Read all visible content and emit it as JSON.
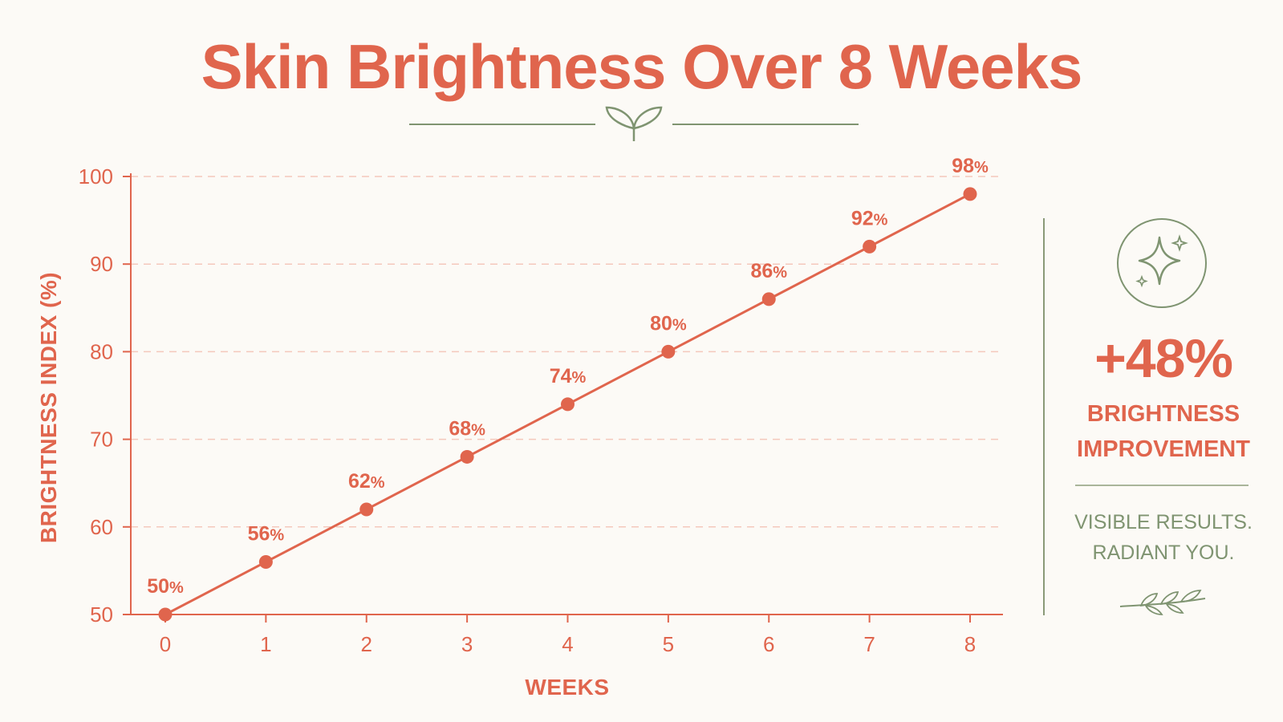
{
  "title": "Skin Brightness Over 8 Weeks",
  "colors": {
    "accent": "#e0654d",
    "sage": "#7f9471",
    "background": "#fcfaf6",
    "grid": "#f4c8bc"
  },
  "icons": {
    "title_ornament": "leaf-sprout-icon",
    "badge": "sparkle-icon",
    "footer": "branch-leaves-icon"
  },
  "chart_data": {
    "type": "line",
    "title": "Skin Brightness Over 8 Weeks",
    "xlabel": "WEEKS",
    "ylabel": "BRIGHTNESS INDEX (%)",
    "x": [
      0,
      1,
      2,
      3,
      4,
      5,
      6,
      7,
      8
    ],
    "values": [
      50,
      56,
      62,
      68,
      74,
      80,
      86,
      92,
      98
    ],
    "data_label_unit": "%",
    "xlim": [
      0,
      8
    ],
    "ylim": [
      50,
      100
    ],
    "y_ticks": [
      50,
      60,
      70,
      80,
      90,
      100
    ],
    "x_ticks": [
      0,
      1,
      2,
      3,
      4,
      5,
      6,
      7,
      8
    ],
    "grid": "horizontal dashed",
    "legend": "none"
  },
  "summary": {
    "stat_value": "+48%",
    "stat_label_line1": "BRIGHTNESS",
    "stat_label_line2": "IMPROVEMENT",
    "tagline_line1": "VISIBLE RESULTS.",
    "tagline_line2": "RADIANT YOU."
  }
}
